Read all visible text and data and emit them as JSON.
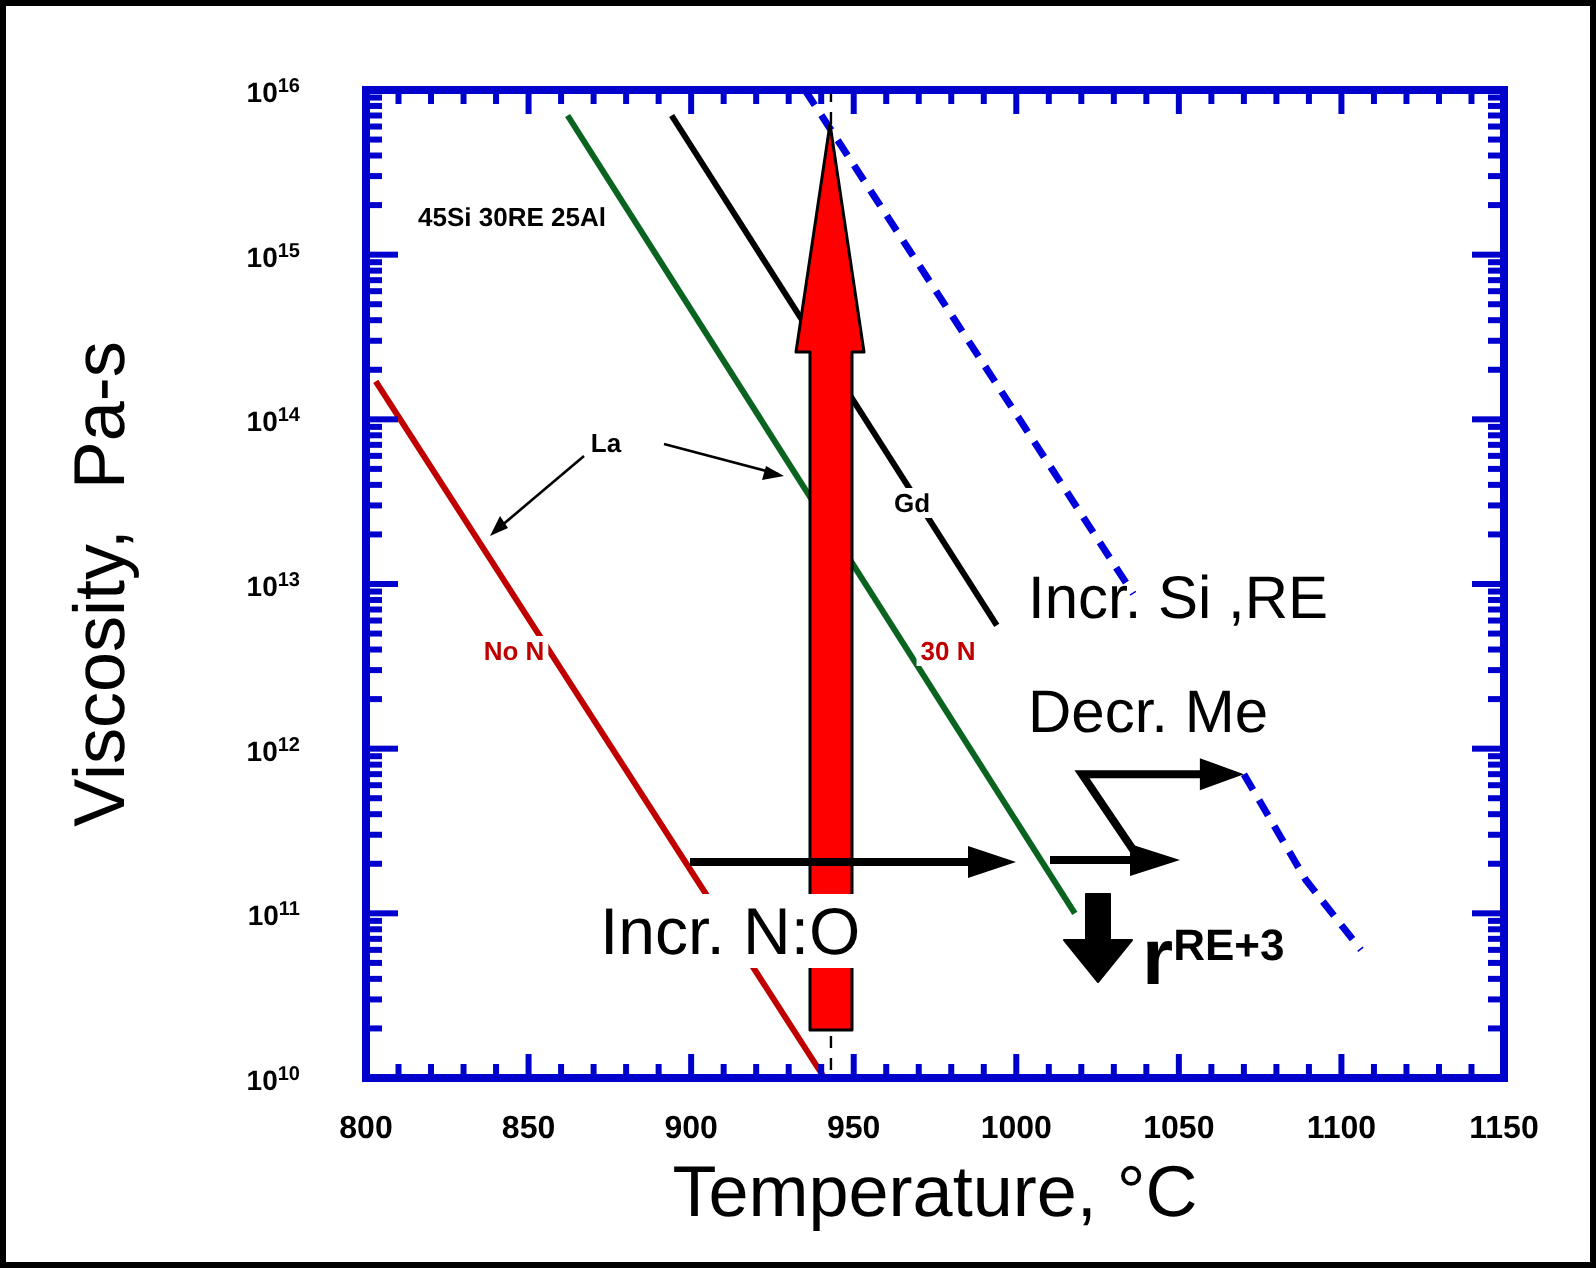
{
  "chart_data": {
    "type": "line",
    "xlabel": "Temperature, °C",
    "ylabel": "Viscosity,  Pa-s",
    "log": "y",
    "grid": false,
    "marker": "none",
    "xlim": [
      800,
      1150
    ],
    "ylim": [
      10000000000.0,
      1e+16
    ],
    "xticks": [
      800,
      {
        "value": 810,
        "label": null
      },
      {
        "value": 820,
        "label": null
      },
      {
        "value": 830,
        "label": null
      },
      {
        "value": 840,
        "label": null
      },
      850,
      {
        "value": 860,
        "label": null
      },
      {
        "value": 870,
        "label": null
      },
      {
        "value": 880,
        "label": null
      },
      {
        "value": 890,
        "label": null
      },
      900,
      {
        "value": 910,
        "label": null
      },
      {
        "value": 920,
        "label": null
      },
      {
        "value": 930,
        "label": null
      },
      {
        "value": 940,
        "label": null
      },
      950,
      {
        "value": 960,
        "label": null
      },
      {
        "value": 970,
        "label": null
      },
      {
        "value": 980,
        "label": null
      },
      {
        "value": 990,
        "label": null
      },
      1000,
      {
        "value": 1010,
        "label": null
      },
      {
        "value": 1020,
        "label": null
      },
      {
        "value": 1030,
        "label": null
      },
      {
        "value": 1040,
        "label": null
      },
      1050,
      {
        "value": 1060,
        "label": null
      },
      {
        "value": 1070,
        "label": null
      },
      {
        "value": 1080,
        "label": null
      },
      {
        "value": 1090,
        "label": null
      },
      1100,
      {
        "value": 1110,
        "label": null
      },
      {
        "value": 1120,
        "label": null
      },
      {
        "value": 1130,
        "label": null
      },
      {
        "value": 1140,
        "label": null
      },
      1150
    ],
    "yticks": [
      {
        "value": 10000000000.0,
        "label": "10$^{10}$"
      },
      {
        "value": 20000000000.0,
        "label": null
      },
      {
        "value": 30000000000.0,
        "label": null
      },
      {
        "value": 40000000000.0,
        "label": null
      },
      {
        "value": 50000000000.0,
        "label": null
      },
      {
        "value": 60000000000.0,
        "label": null
      },
      {
        "value": 70000000000.0,
        "label": null
      },
      {
        "value": 80000000000.0,
        "label": null
      },
      {
        "value": 90000000000.0,
        "label": null
      },
      {
        "value": 100000000000.0,
        "label": "10$^{11}$"
      },
      {
        "value": 200000000000.0,
        "label": null
      },
      {
        "value": 300000000000.0,
        "label": null
      },
      {
        "value": 400000000000.0,
        "label": null
      },
      {
        "value": 500000000000.0,
        "label": null
      },
      {
        "value": 600000000000.0,
        "label": null
      },
      {
        "value": 700000000000.0,
        "label": null
      },
      {
        "value": 800000000000.0,
        "label": null
      },
      {
        "value": 900000000000.0,
        "label": null
      },
      {
        "value": 1000000000000.0,
        "label": "10$^{12}$"
      },
      {
        "value": 2000000000000.0,
        "label": null
      },
      {
        "value": 3000000000000.0,
        "label": null
      },
      {
        "value": 4000000000000.0,
        "label": null
      },
      {
        "value": 5000000000000.0,
        "label": null
      },
      {
        "value": 6000000000000.0,
        "label": null
      },
      {
        "value": 7000000000000.0,
        "label": null
      },
      {
        "value": 8000000000000.0,
        "label": null
      },
      {
        "value": 9000000000000.0,
        "label": null
      },
      {
        "value": 10000000000000.0,
        "label": "10$^{13}$"
      },
      {
        "value": 20000000000000.0,
        "label": null
      },
      {
        "value": 30000000000000.0,
        "label": null
      },
      {
        "value": 40000000000000.0,
        "label": null
      },
      {
        "value": 50000000000000.0,
        "label": null
      },
      {
        "value": 60000000000000.0,
        "label": null
      },
      {
        "value": 70000000000000.0,
        "label": null
      },
      {
        "value": 80000000000000.0,
        "label": null
      },
      {
        "value": 90000000000000.0,
        "label": null
      },
      {
        "value": 100000000000000.0,
        "label": "10$^{14}$"
      },
      {
        "value": 200000000000000.0,
        "label": null
      },
      {
        "value": 300000000000000.0,
        "label": null
      },
      {
        "value": 400000000000000.0,
        "label": null
      },
      {
        "value": 500000000000000.0,
        "label": null
      },
      {
        "value": 600000000000000.0,
        "label": null
      },
      {
        "value": 700000000000000.0,
        "label": null
      },
      {
        "value": 800000000000000.0,
        "label": null
      },
      {
        "value": 900000000000000.0,
        "label": null
      },
      {
        "value": 1000000000000000.0,
        "label": "10$^{15}$"
      },
      {
        "value": 2000000000000000.0,
        "label": null
      },
      {
        "value": 3000000000000000.0,
        "label": null
      },
      {
        "value": 4000000000000000.0,
        "label": null
      },
      {
        "value": 5000000000000000.0,
        "label": null
      },
      {
        "value": 6000000000000000.0,
        "label": null
      },
      {
        "value": 7000000000000000.0,
        "label": null
      },
      {
        "value": 8000000000000000.0,
        "label": null
      },
      {
        "value": 9000000000000000.0,
        "label": null
      },
      {
        "value": 1e+16,
        "label": "10$^{16}$"
      }
    ],
    "series": [
      {
        "color": "#c00000",
        "line_style": "solid",
        "x": [
          803,
          941
        ],
        "values": [
          170000000000000.0,
          10000000000.0
        ]
      },
      {
        "color": "#0a6420",
        "line_style": "solid",
        "x": [
          862,
          1018
        ],
        "values": [
          7000000000000000.0,
          100000000000.0
        ]
      },
      {
        "color": "#000000",
        "line_style": "solid",
        "x": [
          894,
          994
        ],
        "values": [
          7000000000000000.0,
          5600000000000.0
        ]
      },
      {
        "color": "#0000dd",
        "line_style": "dashed",
        "x": [
          935,
          1036,
          1050,
          1070,
          1089,
          1106
        ],
        "values": [
          1e+16,
          8700000000000.0,
          null,
          700000000000.0,
          160000000000.0,
          60000000000.0
        ]
      }
    ],
    "ref_lines": [
      {
        "axis": "x",
        "value": 943,
        "color": "#000000",
        "line_style": "dashed"
      }
    ],
    "annotations": [
      "45Si 30RE 25Al",
      "La",
      "Gd",
      "No N",
      "30 N",
      "Incr. Si ,RE",
      {
        "text": "Decr. Me",
        "x": 1070,
        "y": 700000000000.0
      },
      "Incr. N:O",
      "r$^{RE+3}$"
    ]
  }
}
